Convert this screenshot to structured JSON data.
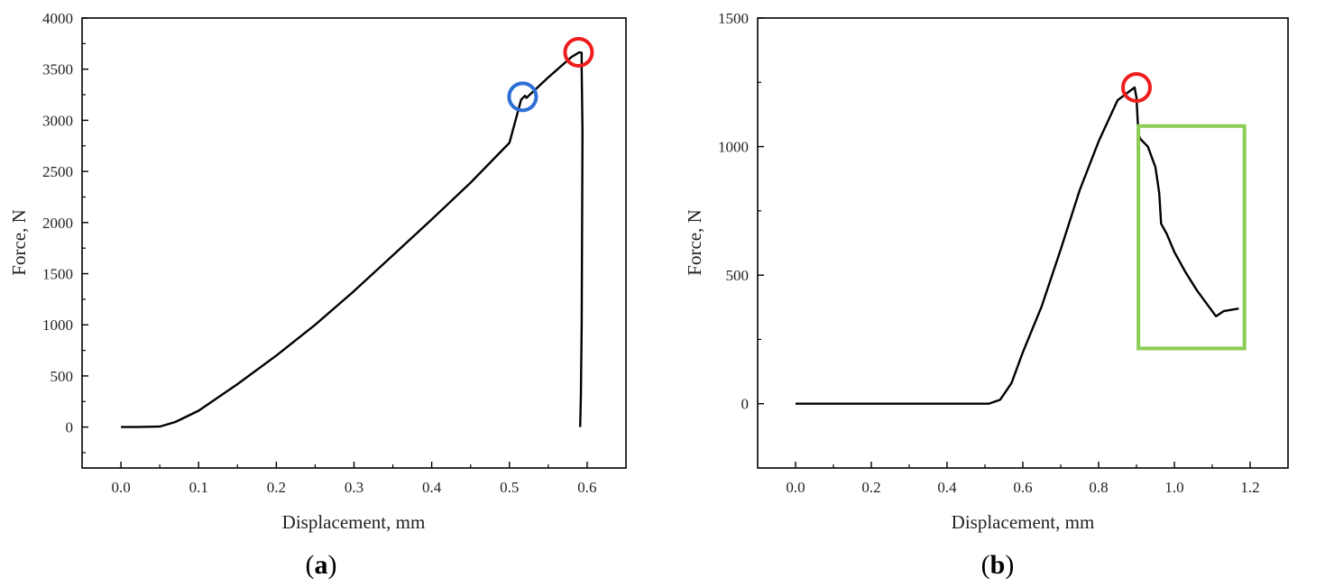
{
  "chart_data": [
    {
      "type": "line",
      "panel_label": {
        "open": "(",
        "letter": "a",
        "close": ")"
      },
      "xlabel": "Displacement, mm",
      "ylabel": "Force, N",
      "xlim": [
        -0.05,
        0.65
      ],
      "ylim": [
        -400,
        4000
      ],
      "x_ticks": [
        "0.0",
        "0.1",
        "0.2",
        "0.3",
        "0.4",
        "0.5",
        "0.6"
      ],
      "y_ticks": [
        "0",
        "500",
        "1000",
        "1500",
        "2000",
        "2500",
        "3000",
        "3500",
        "4000"
      ],
      "grid": false,
      "series": [
        {
          "color": "#000000",
          "points": [
            [
              0.0,
              0
            ],
            [
              0.02,
              0
            ],
            [
              0.05,
              5
            ],
            [
              0.07,
              50
            ],
            [
              0.1,
              160
            ],
            [
              0.15,
              420
            ],
            [
              0.2,
              700
            ],
            [
              0.25,
              1000
            ],
            [
              0.3,
              1330
            ],
            [
              0.35,
              1680
            ],
            [
              0.4,
              2030
            ],
            [
              0.45,
              2390
            ],
            [
              0.5,
              2780
            ],
            [
              0.515,
              3200
            ],
            [
              0.52,
              3240
            ],
            [
              0.522,
              3220
            ],
            [
              0.55,
              3420
            ],
            [
              0.58,
              3620
            ],
            [
              0.59,
              3665
            ],
            [
              0.593,
              3660
            ],
            [
              0.593,
              3500
            ],
            [
              0.594,
              2900
            ],
            [
              0.593,
              1000
            ],
            [
              0.592,
              300
            ],
            [
              0.591,
              0
            ]
          ]
        }
      ],
      "markers": [
        {
          "shape": "circle",
          "color": "#2e6fd6",
          "x": 0.517,
          "y": 3230
        },
        {
          "shape": "circle",
          "color": "#ee1c1c",
          "x": 0.589,
          "y": 3665
        }
      ]
    },
    {
      "type": "line",
      "panel_label": {
        "open": "(",
        "letter": "b",
        "close": ")"
      },
      "xlabel": "Displacement, mm",
      "ylabel": "Force, N",
      "xlim": [
        -0.1,
        1.3
      ],
      "ylim": [
        -250,
        1500
      ],
      "x_ticks": [
        "0.0",
        "0.2",
        "0.4",
        "0.6",
        "0.8",
        "1.0",
        "1.2"
      ],
      "y_ticks": [
        "0",
        "500",
        "1000",
        "1500"
      ],
      "grid": false,
      "series": [
        {
          "color": "#000000",
          "points": [
            [
              0.0,
              0
            ],
            [
              0.3,
              0
            ],
            [
              0.51,
              0
            ],
            [
              0.54,
              15
            ],
            [
              0.57,
              80
            ],
            [
              0.6,
              200
            ],
            [
              0.65,
              380
            ],
            [
              0.7,
              600
            ],
            [
              0.75,
              830
            ],
            [
              0.8,
              1020
            ],
            [
              0.85,
              1180
            ],
            [
              0.895,
              1230
            ],
            [
              0.9,
              1190
            ],
            [
              0.905,
              1050
            ],
            [
              0.91,
              1030
            ],
            [
              0.93,
              1000
            ],
            [
              0.95,
              920
            ],
            [
              0.96,
              820
            ],
            [
              0.965,
              700
            ],
            [
              0.98,
              660
            ],
            [
              1.0,
              590
            ],
            [
              1.03,
              510
            ],
            [
              1.06,
              440
            ],
            [
              1.09,
              380
            ],
            [
              1.11,
              340
            ],
            [
              1.13,
              360
            ],
            [
              1.17,
              370
            ]
          ]
        }
      ],
      "markers": [
        {
          "shape": "circle",
          "color": "#ee1c1c",
          "x": 0.9,
          "y": 1230
        },
        {
          "shape": "rect",
          "color": "#8ccc55",
          "x0": 0.905,
          "y0": 215,
          "x1": 1.185,
          "y1": 1080
        }
      ]
    }
  ]
}
